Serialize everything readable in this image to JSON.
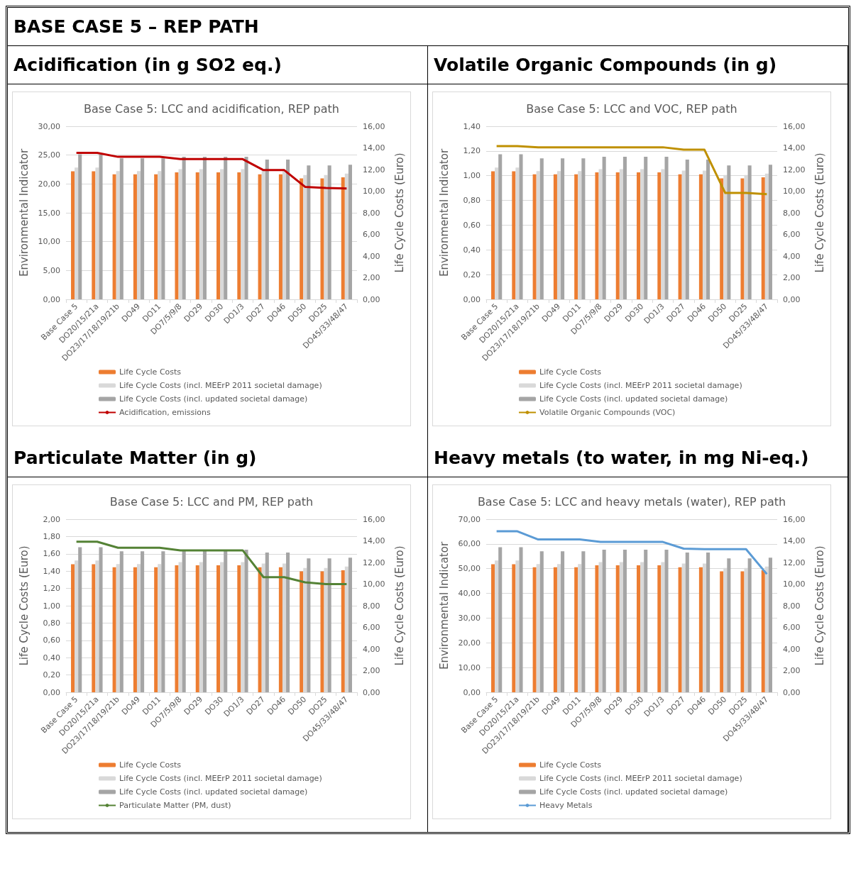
{
  "chart_data": [
    {
      "type": "bar",
      "title": "Base Case 5: LCC and acidification, REP path",
      "annotations": [
        "BASE CASE 5 – REP PATH",
        "Acidification (in g SO2 eq.)"
      ],
      "categories": [
        "Base Case 5",
        "DO20/15/21a",
        "DO23/17/18/19/21b",
        "DO49",
        "DO11",
        "DO7/5/9/8",
        "DO29",
        "DO30",
        "DO1/3",
        "DO27",
        "DO46",
        "DO50",
        "DO25",
        "DO45/33/48/47"
      ],
      "ylabel": "Environmental Indicator",
      "y2label": "Life Cycle Costs (Euro)",
      "ylim": [
        0,
        30
      ],
      "yticks": [
        {
          "value": 0,
          "label": "0,00"
        },
        {
          "value": 5,
          "label": "5,00"
        },
        {
          "value": 10,
          "label": "10,00"
        },
        {
          "value": 15,
          "label": "15,00"
        },
        {
          "value": 20,
          "label": "20,00"
        },
        {
          "value": 25,
          "label": "25,00"
        },
        {
          "value": 30,
          "label": "30,00"
        }
      ],
      "y2lim": [
        0,
        16
      ],
      "y2ticks": [
        {
          "value": 0,
          "label": "0,00"
        },
        {
          "value": 2,
          "label": "2,00"
        },
        {
          "value": 4,
          "label": "4,00"
        },
        {
          "value": 6,
          "label": "6,00"
        },
        {
          "value": 8,
          "label": "8,00"
        },
        {
          "value": 10,
          "label": "10,00"
        },
        {
          "value": 12,
          "label": "12,00"
        },
        {
          "value": 14,
          "label": "14,00"
        },
        {
          "value": 16,
          "label": "16,00"
        }
      ],
      "grid": "y",
      "legend": "bottom",
      "series": [
        {
          "name": "Life Cycle Costs",
          "color": "#ed7d31",
          "axis": "y2",
          "values": [
            11.83,
            11.83,
            11.55,
            11.55,
            11.55,
            11.74,
            11.74,
            11.74,
            11.74,
            11.55,
            11.55,
            11.18,
            11.18,
            11.28
          ]
        },
        {
          "name": "Life Cycle Costs (incl. MEErP 2011 societal damage)",
          "color": "#d9d9d9",
          "axis": "y2",
          "values": [
            12.18,
            12.18,
            11.86,
            11.86,
            11.86,
            12.04,
            12.04,
            12.04,
            12.04,
            11.9,
            11.9,
            11.5,
            11.5,
            11.62
          ]
        },
        {
          "name": "Life Cycle Costs (incl. updated societal damage)",
          "color": "#a5a5a5",
          "axis": "y2",
          "values": [
            13.41,
            13.41,
            13.04,
            13.04,
            13.04,
            13.18,
            13.18,
            13.18,
            13.18,
            12.92,
            12.92,
            12.37,
            12.37,
            12.44
          ]
        },
        {
          "type": "line",
          "name": "Acidification, emissions",
          "color": "#c00000",
          "values": [
            25.4,
            25.4,
            24.7,
            24.7,
            24.7,
            24.3,
            24.3,
            24.3,
            24.3,
            22.4,
            22.4,
            19.5,
            19.3,
            19.2
          ]
        }
      ]
    },
    {
      "type": "bar",
      "title": "Base Case 5: LCC and VOC, REP path",
      "annotations": [
        "Volatile Organic Compounds (in g)"
      ],
      "categories": [
        "Base Case 5",
        "DO20/15/21a",
        "DO23/17/18/19/21b",
        "DO49",
        "DO11",
        "DO7/5/9/8",
        "DO29",
        "DO30",
        "DO1/3",
        "DO27",
        "DO46",
        "DO50",
        "DO25",
        "DO45/33/48/47"
      ],
      "ylabel": "Environmental Indicator",
      "y2label": "Life Cycle Costs (Euro)",
      "ylim": [
        0,
        1.4
      ],
      "yticks": [
        {
          "value": 0,
          "label": "0,00"
        },
        {
          "value": 0.2,
          "label": "0,20"
        },
        {
          "value": 0.4,
          "label": "0,40"
        },
        {
          "value": 0.6,
          "label": "0,60"
        },
        {
          "value": 0.8,
          "label": "0,80"
        },
        {
          "value": 1,
          "label": "1,00"
        },
        {
          "value": 1.2,
          "label": "1,20"
        },
        {
          "value": 1.4,
          "label": "1,40"
        }
      ],
      "y2lim": [
        0,
        16
      ],
      "y2ticks": [
        {
          "value": 0,
          "label": "0,00"
        },
        {
          "value": 2,
          "label": "2,00"
        },
        {
          "value": 4,
          "label": "4,00"
        },
        {
          "value": 6,
          "label": "6,00"
        },
        {
          "value": 8,
          "label": "8,00"
        },
        {
          "value": 10,
          "label": "10,00"
        },
        {
          "value": 12,
          "label": "12,00"
        },
        {
          "value": 14,
          "label": "14,00"
        },
        {
          "value": 16,
          "label": "16,00"
        }
      ],
      "grid": "y",
      "legend": "bottom",
      "series": [
        {
          "name": "Life Cycle Costs",
          "color": "#ed7d31",
          "axis": "y2",
          "values": [
            11.83,
            11.83,
            11.55,
            11.55,
            11.55,
            11.74,
            11.74,
            11.74,
            11.74,
            11.55,
            11.55,
            11.18,
            11.18,
            11.28
          ]
        },
        {
          "name": "Life Cycle Costs (incl. MEErP 2011 societal damage)",
          "color": "#d9d9d9",
          "axis": "y2",
          "values": [
            12.18,
            12.18,
            11.86,
            11.86,
            11.86,
            12.04,
            12.04,
            12.04,
            12.04,
            11.9,
            11.9,
            11.5,
            11.5,
            11.62
          ]
        },
        {
          "name": "Life Cycle Costs (incl. updated societal damage)",
          "color": "#a5a5a5",
          "axis": "y2",
          "values": [
            13.41,
            13.41,
            13.04,
            13.04,
            13.04,
            13.18,
            13.18,
            13.18,
            13.18,
            12.92,
            12.92,
            12.37,
            12.37,
            12.44
          ]
        },
        {
          "type": "line",
          "name": "Volatile Organic Compounds (VOC)",
          "color": "#bf9000",
          "values": [
            1.24,
            1.24,
            1.23,
            1.23,
            1.23,
            1.23,
            1.23,
            1.23,
            1.23,
            1.21,
            1.21,
            0.86,
            0.86,
            0.85
          ]
        }
      ]
    },
    {
      "type": "bar",
      "title": "Base Case 5: LCC and PM, REP path",
      "annotations": [
        "Particulate Matter (in g)"
      ],
      "categories": [
        "Base Case 5",
        "DO20/15/21a",
        "DO23/17/18/19/21b",
        "DO49",
        "DO11",
        "DO7/5/9/8",
        "DO29",
        "DO30",
        "DO1/3",
        "DO27",
        "DO46",
        "DO50",
        "DO25",
        "DO45/33/48/47"
      ],
      "ylabel": "Life Cycle Costs (Euro)",
      "y2label": "Life Cycle Costs (Euro)",
      "ylim": [
        0,
        2
      ],
      "yticks": [
        {
          "value": 0,
          "label": "0,00"
        },
        {
          "value": 0.2,
          "label": "0,20"
        },
        {
          "value": 0.4,
          "label": "0,40"
        },
        {
          "value": 0.6,
          "label": "0,60"
        },
        {
          "value": 0.8,
          "label": "0,80"
        },
        {
          "value": 1,
          "label": "1,00"
        },
        {
          "value": 1.2,
          "label": "1,20"
        },
        {
          "value": 1.4,
          "label": "1,40"
        },
        {
          "value": 1.6,
          "label": "1,60"
        },
        {
          "value": 1.8,
          "label": "1,80"
        },
        {
          "value": 2,
          "label": "2,00"
        }
      ],
      "y2lim": [
        0,
        16
      ],
      "y2ticks": [
        {
          "value": 0,
          "label": "0,00"
        },
        {
          "value": 2,
          "label": "2,00"
        },
        {
          "value": 4,
          "label": "4,00"
        },
        {
          "value": 6,
          "label": "6,00"
        },
        {
          "value": 8,
          "label": "8,00"
        },
        {
          "value": 10,
          "label": "10,00"
        },
        {
          "value": 12,
          "label": "12,00"
        },
        {
          "value": 14,
          "label": "14,00"
        },
        {
          "value": 16,
          "label": "16,00"
        }
      ],
      "grid": "y",
      "legend": "bottom",
      "series": [
        {
          "name": "Life Cycle Costs",
          "color": "#ed7d31",
          "axis": "y2",
          "values": [
            11.83,
            11.83,
            11.55,
            11.55,
            11.55,
            11.74,
            11.74,
            11.74,
            11.74,
            11.55,
            11.55,
            11.18,
            11.18,
            11.28
          ]
        },
        {
          "name": "Life Cycle Costs (incl. MEErP 2011 societal damage)",
          "color": "#d9d9d9",
          "axis": "y2",
          "values": [
            12.18,
            12.18,
            11.86,
            11.86,
            11.86,
            12.04,
            12.04,
            12.04,
            12.04,
            11.9,
            11.9,
            11.5,
            11.5,
            11.62
          ]
        },
        {
          "name": "Life Cycle Costs (incl. updated societal damage)",
          "color": "#a5a5a5",
          "axis": "y2",
          "values": [
            13.41,
            13.41,
            13.04,
            13.04,
            13.04,
            13.18,
            13.18,
            13.18,
            13.18,
            12.92,
            12.92,
            12.37,
            12.37,
            12.44
          ]
        },
        {
          "type": "line",
          "name": "Particulate Matter (PM, dust)",
          "color": "#548235",
          "values": [
            1.74,
            1.74,
            1.67,
            1.67,
            1.67,
            1.64,
            1.64,
            1.64,
            1.64,
            1.33,
            1.33,
            1.27,
            1.25,
            1.25
          ]
        }
      ]
    },
    {
      "type": "bar",
      "title": "Base Case 5: LCC and heavy metals (water), REP path",
      "annotations": [
        "Heavy metals (to water, in mg Ni-eq.)"
      ],
      "categories": [
        "Base Case 5",
        "DO20/15/21a",
        "DO23/17/18/19/21b",
        "DO49",
        "DO11",
        "DO7/5/9/8",
        "DO29",
        "DO30",
        "DO1/3",
        "DO27",
        "DO46",
        "DO50",
        "DO25",
        "DO45/33/48/47"
      ],
      "ylabel": "Environmental Indicator",
      "y2label": "Life Cycle Costs (Euro)",
      "ylim": [
        0,
        70
      ],
      "yticks": [
        {
          "value": 0,
          "label": "0,00"
        },
        {
          "value": 10,
          "label": "10,00"
        },
        {
          "value": 20,
          "label": "20,00"
        },
        {
          "value": 30,
          "label": "30,00"
        },
        {
          "value": 40,
          "label": "40,00"
        },
        {
          "value": 50,
          "label": "50,00"
        },
        {
          "value": 60,
          "label": "60,00"
        },
        {
          "value": 70,
          "label": "70,00"
        }
      ],
      "y2lim": [
        0,
        16
      ],
      "y2ticks": [
        {
          "value": 0,
          "label": "0,00"
        },
        {
          "value": 2,
          "label": "2,00"
        },
        {
          "value": 4,
          "label": "4,00"
        },
        {
          "value": 6,
          "label": "6,00"
        },
        {
          "value": 8,
          "label": "8,00"
        },
        {
          "value": 10,
          "label": "10,00"
        },
        {
          "value": 12,
          "label": "12,00"
        },
        {
          "value": 14,
          "label": "14,00"
        },
        {
          "value": 16,
          "label": "16,00"
        }
      ],
      "grid": "y",
      "legend": "bottom",
      "series": [
        {
          "name": "Life Cycle Costs",
          "color": "#ed7d31",
          "axis": "y2",
          "values": [
            11.83,
            11.83,
            11.55,
            11.55,
            11.55,
            11.74,
            11.74,
            11.74,
            11.74,
            11.55,
            11.55,
            11.18,
            11.18,
            11.28
          ]
        },
        {
          "name": "Life Cycle Costs (incl. MEErP 2011 societal damage)",
          "color": "#d9d9d9",
          "axis": "y2",
          "values": [
            12.18,
            12.18,
            11.86,
            11.86,
            11.86,
            12.04,
            12.04,
            12.04,
            12.04,
            11.9,
            11.9,
            11.5,
            11.5,
            11.62
          ]
        },
        {
          "name": "Life Cycle Costs (incl. updated societal damage)",
          "color": "#a5a5a5",
          "axis": "y2",
          "values": [
            13.41,
            13.41,
            13.04,
            13.04,
            13.04,
            13.18,
            13.18,
            13.18,
            13.18,
            12.92,
            12.92,
            12.37,
            12.37,
            12.44
          ]
        },
        {
          "type": "line",
          "name": "Heavy Metals",
          "color": "#5b9bd5",
          "values": [
            65.1,
            65.1,
            61.8,
            61.8,
            61.8,
            60.8,
            60.8,
            60.8,
            60.8,
            58.1,
            57.9,
            57.9,
            57.9,
            47.8
          ]
        }
      ]
    }
  ]
}
